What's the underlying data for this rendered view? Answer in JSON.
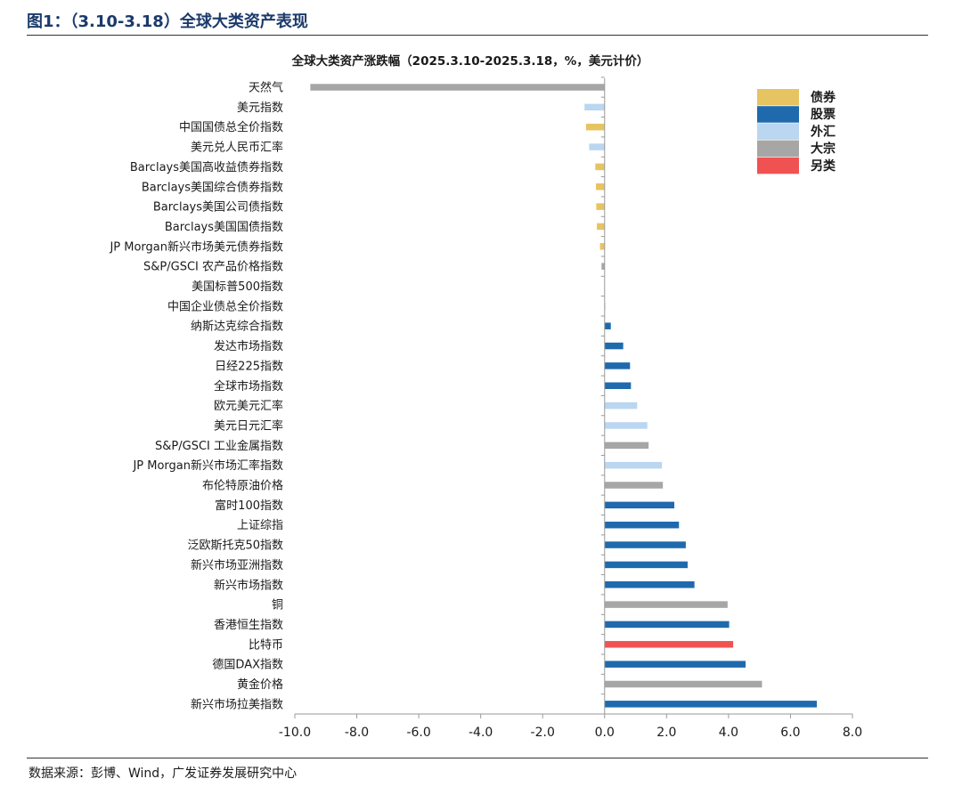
{
  "figure": {
    "title": "图1：（3.10-3.18）全球大类资产表现",
    "source": "数据来源：彭博、Wind，广发证券发展研究中心"
  },
  "chart_data": {
    "type": "bar",
    "orientation": "horizontal",
    "title": "全球大类资产涨跌幅（2025.3.10-2025.3.18，%，美元计价）",
    "xlabel": "",
    "ylabel": "",
    "xlim": [
      -10,
      8
    ],
    "xticks": [
      "-10.0",
      "-8.0",
      "-6.0",
      "-4.0",
      "-2.0",
      "0.0",
      "2.0",
      "4.0",
      "6.0",
      "8.0"
    ],
    "grid": false,
    "legend_position": "top-right",
    "groups": [
      {
        "key": "bond",
        "name": "债券",
        "color": "#e6c462"
      },
      {
        "key": "equity",
        "name": "股票",
        "color": "#1f6aad"
      },
      {
        "key": "fx",
        "name": "外汇",
        "color": "#bad6f0"
      },
      {
        "key": "commodity",
        "name": "大宗",
        "color": "#a6a6a6"
      },
      {
        "key": "alternative",
        "name": "另类",
        "color": "#f05252"
      }
    ],
    "categories": [
      "天然气",
      "美元指数",
      "中国国债总全价指数",
      "美元兑人民币汇率",
      "Barclays美国高收益债券指数",
      "Barclays美国综合债券指数",
      "Barclays美国公司债指数",
      "Barclays美国国债指数",
      "JP Morgan新兴市场美元债券指数",
      "S&P/GSCI 农产品价格指数",
      "美国标普500指数",
      "中国企业债总全价指数",
      "纳斯达克综合指数",
      "发达市场指数",
      "日经225指数",
      "全球市场指数",
      "欧元美元汇率",
      "美元日元汇率",
      "S&P/GSCI 工业金属指数",
      "JP Morgan新兴市场汇率指数",
      "布伦特原油价格",
      "富时100指数",
      "上证综指",
      "泛欧斯托克50指数",
      "新兴市场亚洲指数",
      "新兴市场指数",
      "铜",
      "香港恒生指数",
      "比特币",
      "德国DAX指数",
      "黄金价格",
      "新兴市场拉美指数"
    ],
    "values": [
      -9.5,
      -0.65,
      -0.6,
      -0.5,
      -0.3,
      -0.28,
      -0.27,
      -0.25,
      -0.15,
      -0.1,
      0.0,
      0.02,
      0.2,
      0.6,
      0.82,
      0.85,
      1.05,
      1.38,
      1.42,
      1.85,
      1.88,
      2.25,
      2.4,
      2.62,
      2.68,
      2.9,
      3.97,
      4.02,
      4.15,
      4.55,
      5.08,
      6.85
    ],
    "group_of": [
      "commodity",
      "fx",
      "bond",
      "fx",
      "bond",
      "bond",
      "bond",
      "bond",
      "bond",
      "commodity",
      "equity",
      "bond",
      "equity",
      "equity",
      "equity",
      "equity",
      "fx",
      "fx",
      "commodity",
      "fx",
      "commodity",
      "equity",
      "equity",
      "equity",
      "equity",
      "equity",
      "commodity",
      "equity",
      "alternative",
      "equity",
      "commodity",
      "equity"
    ]
  }
}
